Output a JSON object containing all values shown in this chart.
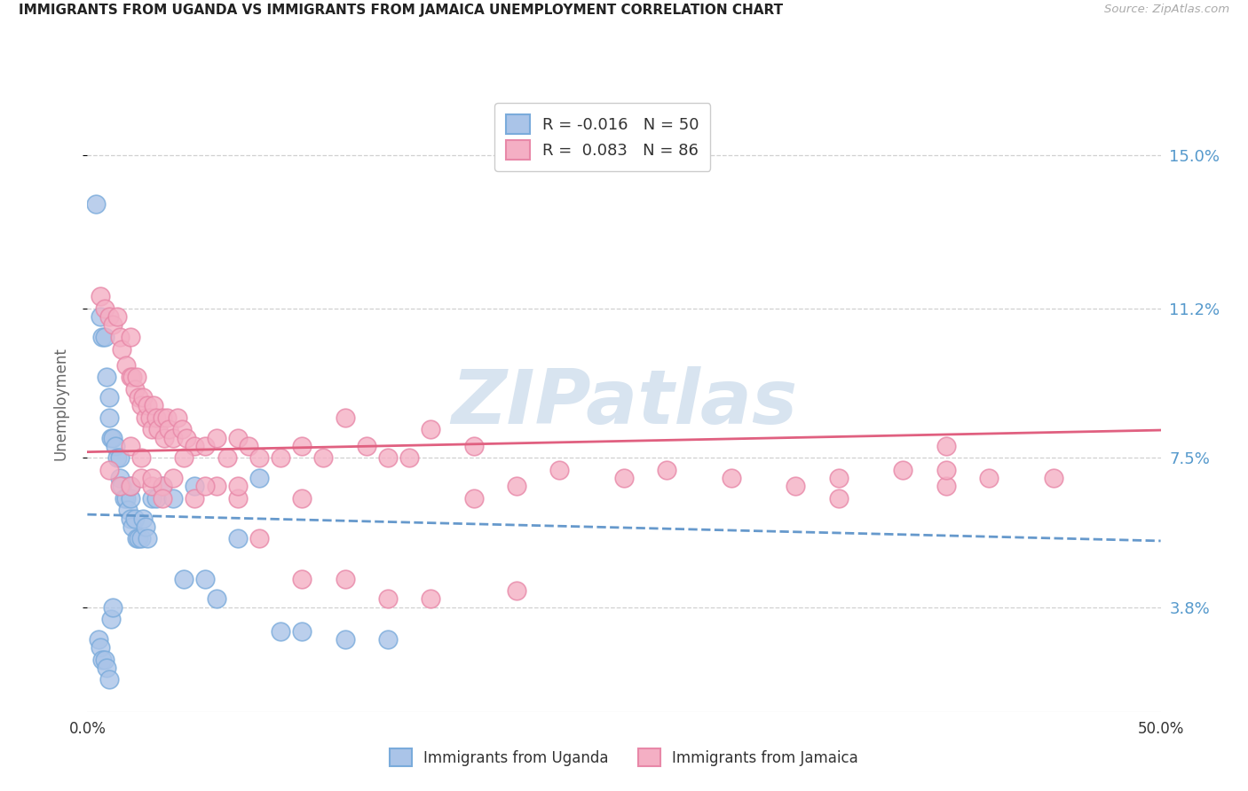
{
  "title": "IMMIGRANTS FROM UGANDA VS IMMIGRANTS FROM JAMAICA UNEMPLOYMENT CORRELATION CHART",
  "source": "Source: ZipAtlas.com",
  "ylabel": "Unemployment",
  "ytick_values": [
    3.8,
    7.5,
    11.2,
    15.0
  ],
  "xlim": [
    0.0,
    50.0
  ],
  "ylim": [
    1.2,
    16.5
  ],
  "R_uganda": -0.016,
  "N_uganda": 50,
  "R_jamaica": 0.083,
  "N_jamaica": 86,
  "color_uganda_fill": "#aac4e8",
  "color_uganda_edge": "#7aabdb",
  "color_jamaica_fill": "#f4afc4",
  "color_jamaica_edge": "#e888a8",
  "color_uganda_line": "#6699cc",
  "color_jamaica_line": "#e06080",
  "right_axis_color": "#5599cc",
  "background": "#ffffff",
  "watermark_color": "#d8e4f0",
  "grid_color": "#d0d0d0",
  "uganda_x": [
    0.4,
    0.6,
    0.7,
    0.8,
    0.9,
    1.0,
    1.0,
    1.1,
    1.2,
    1.3,
    1.4,
    1.5,
    1.5,
    1.6,
    1.7,
    1.8,
    1.9,
    2.0,
    2.0,
    2.1,
    2.2,
    2.3,
    2.4,
    2.5,
    2.6,
    2.7,
    2.8,
    3.0,
    3.2,
    3.5,
    4.0,
    4.5,
    5.0,
    5.5,
    6.0,
    7.0,
    8.0,
    9.0,
    10.0,
    12.0,
    14.0,
    0.5,
    0.6,
    0.7,
    0.8,
    0.9,
    1.0,
    1.1,
    1.2,
    2.0
  ],
  "uganda_y": [
    13.8,
    11.0,
    10.5,
    10.5,
    9.5,
    9.0,
    8.5,
    8.0,
    8.0,
    7.8,
    7.5,
    7.5,
    7.0,
    6.8,
    6.5,
    6.5,
    6.2,
    6.0,
    6.5,
    5.8,
    6.0,
    5.5,
    5.5,
    5.5,
    6.0,
    5.8,
    5.5,
    6.5,
    6.5,
    6.8,
    6.5,
    4.5,
    6.8,
    4.5,
    4.0,
    5.5,
    7.0,
    3.2,
    3.2,
    3.0,
    3.0,
    3.0,
    2.8,
    2.5,
    2.5,
    2.3,
    2.0,
    3.5,
    3.8,
    6.8
  ],
  "jamaica_x": [
    0.6,
    0.8,
    1.0,
    1.2,
    1.4,
    1.5,
    1.6,
    1.8,
    2.0,
    2.0,
    2.1,
    2.2,
    2.3,
    2.4,
    2.5,
    2.6,
    2.7,
    2.8,
    2.9,
    3.0,
    3.1,
    3.2,
    3.3,
    3.5,
    3.6,
    3.7,
    3.8,
    4.0,
    4.2,
    4.4,
    4.6,
    5.0,
    5.5,
    6.0,
    6.5,
    7.0,
    7.5,
    8.0,
    9.0,
    10.0,
    11.0,
    12.0,
    13.0,
    14.0,
    15.0,
    16.0,
    18.0,
    20.0,
    22.0,
    25.0,
    27.0,
    30.0,
    33.0,
    35.0,
    38.0,
    40.0,
    42.0,
    45.0,
    1.0,
    1.5,
    2.0,
    2.5,
    3.0,
    3.5,
    4.0,
    5.0,
    6.0,
    7.0,
    8.0,
    10.0,
    12.0,
    14.0,
    16.0,
    20.0,
    35.0,
    40.0,
    2.0,
    2.5,
    3.0,
    3.5,
    4.5,
    5.5,
    7.0,
    10.0,
    18.0,
    40.0
  ],
  "jamaica_y": [
    11.5,
    11.2,
    11.0,
    10.8,
    11.0,
    10.5,
    10.2,
    9.8,
    9.5,
    10.5,
    9.5,
    9.2,
    9.5,
    9.0,
    8.8,
    9.0,
    8.5,
    8.8,
    8.5,
    8.2,
    8.8,
    8.5,
    8.2,
    8.5,
    8.0,
    8.5,
    8.2,
    8.0,
    8.5,
    8.2,
    8.0,
    7.8,
    7.8,
    8.0,
    7.5,
    8.0,
    7.8,
    7.5,
    7.5,
    7.8,
    7.5,
    8.5,
    7.8,
    7.5,
    7.5,
    8.2,
    7.8,
    6.8,
    7.2,
    7.0,
    7.2,
    7.0,
    6.8,
    7.0,
    7.2,
    6.8,
    7.0,
    7.0,
    7.2,
    6.8,
    6.8,
    7.0,
    6.8,
    6.8,
    7.0,
    6.5,
    6.8,
    6.5,
    5.5,
    4.5,
    4.5,
    4.0,
    4.0,
    4.2,
    6.5,
    7.2,
    7.8,
    7.5,
    7.0,
    6.5,
    7.5,
    6.8,
    6.8,
    6.5,
    6.5,
    7.8
  ]
}
